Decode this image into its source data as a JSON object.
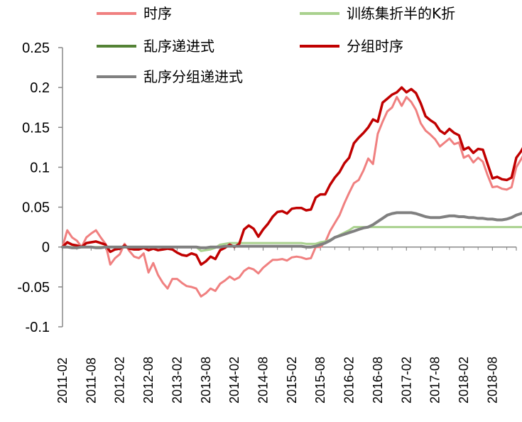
{
  "chart_data": {
    "type": "line",
    "title": "",
    "xlabel": "",
    "ylabel": "",
    "ylim": [
      -0.1,
      0.25
    ],
    "yticks": [
      -0.1,
      -0.05,
      0,
      0.05,
      0.1,
      0.15,
      0.2,
      0.25
    ],
    "ytick_labels": [
      "-0.1",
      "-0.05",
      "0",
      "0.05",
      "0.1",
      "0.15",
      "0.2",
      "0.25"
    ],
    "xtick_labels": [
      "2011-02",
      "2011-08",
      "2012-02",
      "2012-08",
      "2013-02",
      "2013-08",
      "2014-02",
      "2014-08",
      "2015-02",
      "2015-08",
      "2016-02",
      "2016-08",
      "2017-02",
      "2017-08",
      "2018-02",
      "2018-08"
    ],
    "n_points": 96,
    "legend": [
      {
        "name": "时序",
        "color": "#F08080"
      },
      {
        "name": "训练集折半的K折",
        "color": "#A9D18E"
      },
      {
        "name": "乱序递进式",
        "color": "#548235"
      },
      {
        "name": "分组时序",
        "color": "#C00000"
      },
      {
        "name": "乱序分组递进式",
        "color": "#808080"
      }
    ],
    "series": [
      {
        "name": "时序",
        "color": "#F08080",
        "width": 3,
        "values": [
          0,
          0.021,
          0.012,
          0.008,
          0,
          0.012,
          0.017,
          0.021,
          0.012,
          0.004,
          -0.022,
          -0.014,
          -0.009,
          0.004,
          -0.005,
          -0.012,
          -0.014,
          -0.008,
          -0.032,
          -0.02,
          -0.035,
          -0.045,
          -0.052,
          -0.04,
          -0.04,
          -0.045,
          -0.049,
          -0.05,
          -0.052,
          -0.062,
          -0.058,
          -0.052,
          -0.055,
          -0.046,
          -0.042,
          -0.037,
          -0.041,
          -0.038,
          -0.03,
          -0.026,
          -0.028,
          -0.033,
          -0.026,
          -0.021,
          -0.016,
          -0.016,
          -0.015,
          -0.017,
          -0.013,
          -0.012,
          -0.013,
          -0.015,
          -0.014,
          0,
          0,
          0.006,
          0.02,
          0.03,
          0.04,
          0.055,
          0.068,
          0.08,
          0.084,
          0.096,
          0.111,
          0.104,
          0.142,
          0.157,
          0.17,
          0.175,
          0.188,
          0.177,
          0.188,
          0.182,
          0.172,
          0.155,
          0.146,
          0.141,
          0.135,
          0.126,
          0.131,
          0.136,
          0.129,
          0.131,
          0.112,
          0.115,
          0.106,
          0.112,
          0.107,
          0.09,
          0.075,
          0.076,
          0.073,
          0.072,
          0.075,
          0.1,
          0.11,
          0.121
        ]
      },
      {
        "name": "训练集折半的K折",
        "color": "#A9D18E",
        "width": 3,
        "values": [
          0,
          0,
          0,
          0,
          0,
          0,
          0,
          0,
          0,
          0,
          0,
          0,
          0,
          0,
          0,
          0,
          0,
          0,
          0,
          0,
          0,
          0,
          0,
          0,
          0,
          0,
          0,
          0,
          0,
          -0.005,
          -0.004,
          -0.003,
          -0.001,
          0.003,
          0.004,
          0.005,
          0.005,
          0.005,
          0.005,
          0.005,
          0.005,
          0.005,
          0.005,
          0.005,
          0.005,
          0.005,
          0.005,
          0.005,
          0.005,
          0.005,
          0.005,
          0.004,
          0.004,
          0.004,
          0.006,
          0.007,
          0.009,
          0.012,
          0.015,
          0.018,
          0.021,
          0.025,
          0.025,
          0.025,
          0.025,
          0.025,
          0.025,
          0.025,
          0.025,
          0.025,
          0.025,
          0.025,
          0.025,
          0.025,
          0.025,
          0.025,
          0.025,
          0.025,
          0.025,
          0.025,
          0.025,
          0.025,
          0.025,
          0.025,
          0.025,
          0.025,
          0.025,
          0.025,
          0.025,
          0.025,
          0.025,
          0.025,
          0.025,
          0.025,
          0.025,
          0.025,
          0.025,
          0.025
        ]
      },
      {
        "name": "乱序递进式",
        "color": "#548235",
        "width": 3,
        "values": [
          0,
          0,
          -0.001,
          -0.001,
          0,
          0,
          0,
          -0.001,
          -0.001,
          0,
          0,
          0,
          0,
          0,
          0,
          0,
          0,
          0,
          0,
          0,
          0,
          0,
          0,
          0,
          0,
          0,
          0,
          0,
          0,
          -0.001,
          -0.001,
          0,
          0,
          0,
          0.001,
          0.001,
          0.001,
          0.001,
          0.001,
          0.001,
          0.001,
          0.001,
          0.001,
          0.001,
          0.001,
          0.001,
          0.001,
          0.001,
          0.001,
          0.001,
          0.001,
          0,
          0,
          0.001,
          0.003,
          0.005,
          0.008,
          0.012,
          0.014,
          0.016,
          0.018,
          0.02,
          0.022,
          0.024,
          0.025,
          0.028,
          0.032,
          0.036,
          0.04,
          0.042,
          0.043,
          0.043,
          0.043,
          0.043,
          0.042,
          0.04,
          0.038,
          0.037,
          0.037,
          0.037,
          0.038,
          0.039,
          0.039,
          0.038,
          0.038,
          0.037,
          0.037,
          0.036,
          0.036,
          0.035,
          0.035,
          0.034,
          0.034,
          0.035,
          0.037,
          0.04,
          0.042,
          0.044
        ]
      },
      {
        "name": "分组时序",
        "color": "#C00000",
        "width": 3.5,
        "values": [
          0,
          0.006,
          0.003,
          0.002,
          0,
          0.005,
          0.006,
          0.007,
          0.005,
          0.003,
          -0.006,
          -0.003,
          -0.002,
          0.002,
          -0.002,
          -0.003,
          -0.003,
          -0.001,
          -0.004,
          -0.002,
          -0.004,
          -0.003,
          -0.002,
          -0.003,
          -0.007,
          -0.01,
          -0.011,
          -0.008,
          -0.01,
          -0.022,
          -0.018,
          -0.012,
          -0.015,
          -0.004,
          -0.001,
          0.003,
          0,
          0.004,
          0.022,
          0.027,
          0.023,
          0.013,
          0.022,
          0.029,
          0.038,
          0.044,
          0.045,
          0.042,
          0.048,
          0.049,
          0.049,
          0.046,
          0.047,
          0.062,
          0.066,
          0.066,
          0.078,
          0.087,
          0.094,
          0.105,
          0.112,
          0.13,
          0.137,
          0.143,
          0.15,
          0.16,
          0.157,
          0.181,
          0.186,
          0.191,
          0.194,
          0.2,
          0.194,
          0.198,
          0.193,
          0.18,
          0.164,
          0.159,
          0.155,
          0.146,
          0.142,
          0.148,
          0.143,
          0.14,
          0.122,
          0.125,
          0.118,
          0.123,
          0.122,
          0.104,
          0.086,
          0.088,
          0.085,
          0.084,
          0.087,
          0.112,
          0.12,
          0.131
        ]
      },
      {
        "name": "乱序分组递进式",
        "color": "#808080",
        "width": 4,
        "values": [
          0,
          0,
          -0.001,
          -0.001,
          0,
          0,
          0,
          -0.001,
          -0.001,
          0,
          0,
          0,
          0,
          0,
          0,
          0,
          0,
          0,
          0,
          0,
          0,
          0,
          0,
          0,
          0,
          0,
          0,
          0,
          0,
          -0.001,
          -0.001,
          0,
          0,
          0,
          0.001,
          0.001,
          0.001,
          0.001,
          0.001,
          0.001,
          0.001,
          0.001,
          0.001,
          0.001,
          0.001,
          0.001,
          0.001,
          0.001,
          0.001,
          0.001,
          0.001,
          0,
          0,
          0.001,
          0.003,
          0.005,
          0.008,
          0.012,
          0.014,
          0.016,
          0.018,
          0.02,
          0.022,
          0.024,
          0.025,
          0.028,
          0.032,
          0.036,
          0.04,
          0.042,
          0.043,
          0.043,
          0.043,
          0.043,
          0.042,
          0.04,
          0.038,
          0.037,
          0.037,
          0.037,
          0.038,
          0.039,
          0.039,
          0.038,
          0.038,
          0.037,
          0.037,
          0.036,
          0.036,
          0.035,
          0.035,
          0.034,
          0.034,
          0.035,
          0.037,
          0.04,
          0.042,
          0.044
        ]
      }
    ]
  }
}
